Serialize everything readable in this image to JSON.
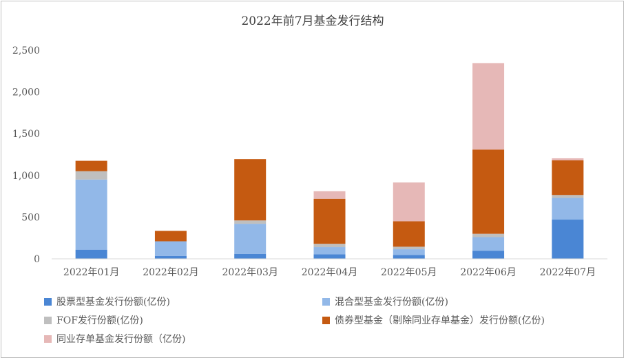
{
  "chart_data": {
    "type": "bar",
    "stacked": true,
    "title": "2022年前7月基金发行结构",
    "xlabel": "",
    "ylabel": "",
    "ylim": [
      0,
      2500
    ],
    "yticks": [
      0,
      500,
      1000,
      1500,
      2000,
      2500
    ],
    "ytick_labels": [
      "0",
      "500",
      "1,000",
      "1,500",
      "2,000",
      "2,500"
    ],
    "grid": false,
    "legend_position": "bottom",
    "categories": [
      "2022年01月",
      "2022年02月",
      "2022年03月",
      "2022年04月",
      "2022年05月",
      "2022年06月",
      "2022年07月"
    ],
    "series": [
      {
        "name": "股票型基金发行份额(亿份)",
        "color": "#4a86d4",
        "values": [
          110,
          35,
          60,
          55,
          45,
          95,
          470
        ]
      },
      {
        "name": "混合型基金发行份额(亿份)",
        "color": "#92b8e8",
        "values": [
          840,
          175,
          360,
          85,
          70,
          165,
          260
        ]
      },
      {
        "name": "FOF发行份额(亿份)",
        "color": "#bfbfbf",
        "values": [
          100,
          0,
          40,
          40,
          30,
          40,
          35
        ]
      },
      {
        "name": "债券型基金（剔除同业存单基金）发行份额(亿份)",
        "color": "#c55a11",
        "values": [
          125,
          125,
          735,
          540,
          305,
          1010,
          415
        ]
      },
      {
        "name": "同业存单基金发行份额（亿份)",
        "color": "#e6b8b7",
        "values": [
          0,
          0,
          0,
          90,
          465,
          1035,
          25
        ]
      }
    ]
  }
}
